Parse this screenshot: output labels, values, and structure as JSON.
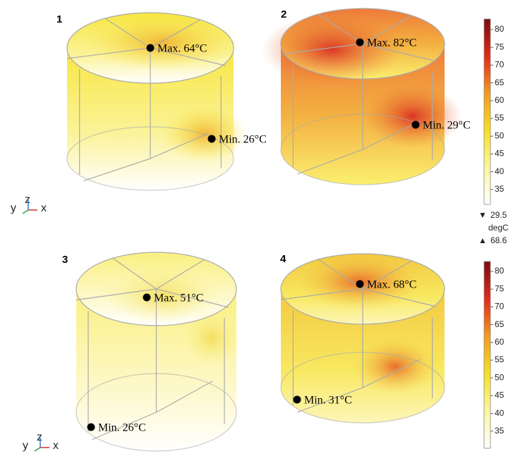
{
  "panels": [
    {
      "label": "1",
      "max": "Max. 64°C",
      "min": "Min. 26°C"
    },
    {
      "label": "2",
      "max": "Max. 82°C",
      "min": "Min. 29°C"
    },
    {
      "label": "3",
      "max": "Max. 51°C",
      "min": "Min. 26°C"
    },
    {
      "label": "4",
      "max": "Max. 68°C",
      "min": "Min. 31°C"
    }
  ],
  "triads": [
    {
      "y": "y",
      "z": "z",
      "x": "x"
    },
    {
      "y": "y",
      "z": "z",
      "x": "x"
    }
  ],
  "colorbars": [
    {
      "ticks": [
        "80",
        "75",
        "70",
        "65",
        "60",
        "55",
        "50",
        "45",
        "40",
        "35"
      ]
    },
    {
      "ticks": [
        "80",
        "75",
        "70",
        "65",
        "60",
        "55",
        "50",
        "45",
        "40",
        "35"
      ]
    }
  ],
  "range": {
    "min": "29.5",
    "unit": "degC",
    "max": "68.6"
  }
}
